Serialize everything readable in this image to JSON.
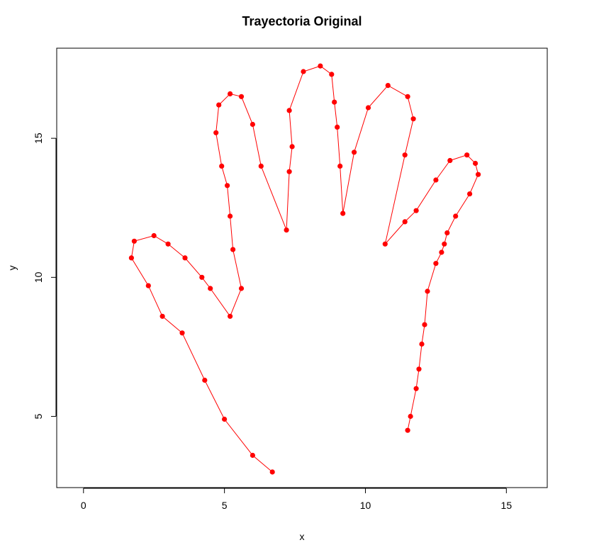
{
  "chart_data": {
    "type": "line",
    "title": "Trayectoria Original",
    "xlabel": "x",
    "ylabel": "y",
    "xlim": [
      -0.95,
      16.45
    ],
    "ylim": [
      2.44,
      18.24
    ],
    "xticks": [
      0,
      5,
      10,
      15
    ],
    "yticks": [
      5,
      10,
      15
    ],
    "grid": false,
    "legend": "none",
    "markers": true,
    "series": [
      {
        "color": "#ff0000",
        "x": [
          6.7,
          6.0,
          5.0,
          4.3,
          3.5,
          2.8,
          2.3,
          1.7,
          1.8,
          2.5,
          3.0,
          3.6,
          4.2,
          4.5,
          5.2,
          5.6,
          5.3,
          5.2,
          5.1,
          4.9,
          4.7,
          4.8,
          5.2,
          5.6,
          6.0,
          6.3,
          7.2,
          7.3,
          7.4,
          7.3,
          7.8,
          8.4,
          8.8,
          8.9,
          9.0,
          9.1,
          9.2,
          9.6,
          10.1,
          10.8,
          11.5,
          11.7,
          11.4,
          10.7,
          11.4,
          11.8,
          12.5,
          13.0,
          13.6,
          13.9,
          14.0,
          13.7,
          13.2,
          12.9,
          12.8,
          12.7,
          12.5,
          12.2,
          12.1,
          12.0,
          11.9,
          11.8,
          11.6,
          11.5
        ],
        "y": [
          3.0,
          3.6,
          4.9,
          6.3,
          8.0,
          8.6,
          9.7,
          10.7,
          11.3,
          11.5,
          11.2,
          10.7,
          10.0,
          9.6,
          8.6,
          9.6,
          11.0,
          12.2,
          13.3,
          14.0,
          15.2,
          16.2,
          16.6,
          16.5,
          15.5,
          14.0,
          11.7,
          13.8,
          14.7,
          16.0,
          17.4,
          17.6,
          17.3,
          16.3,
          15.4,
          14.0,
          12.3,
          14.5,
          16.1,
          16.9,
          16.5,
          15.7,
          14.4,
          11.2,
          12.0,
          12.4,
          13.5,
          14.2,
          14.4,
          14.1,
          13.7,
          13.0,
          12.2,
          11.6,
          11.2,
          10.9,
          10.5,
          9.5,
          8.3,
          7.6,
          6.7,
          6.0,
          5.0,
          4.5
        ]
      }
    ]
  }
}
